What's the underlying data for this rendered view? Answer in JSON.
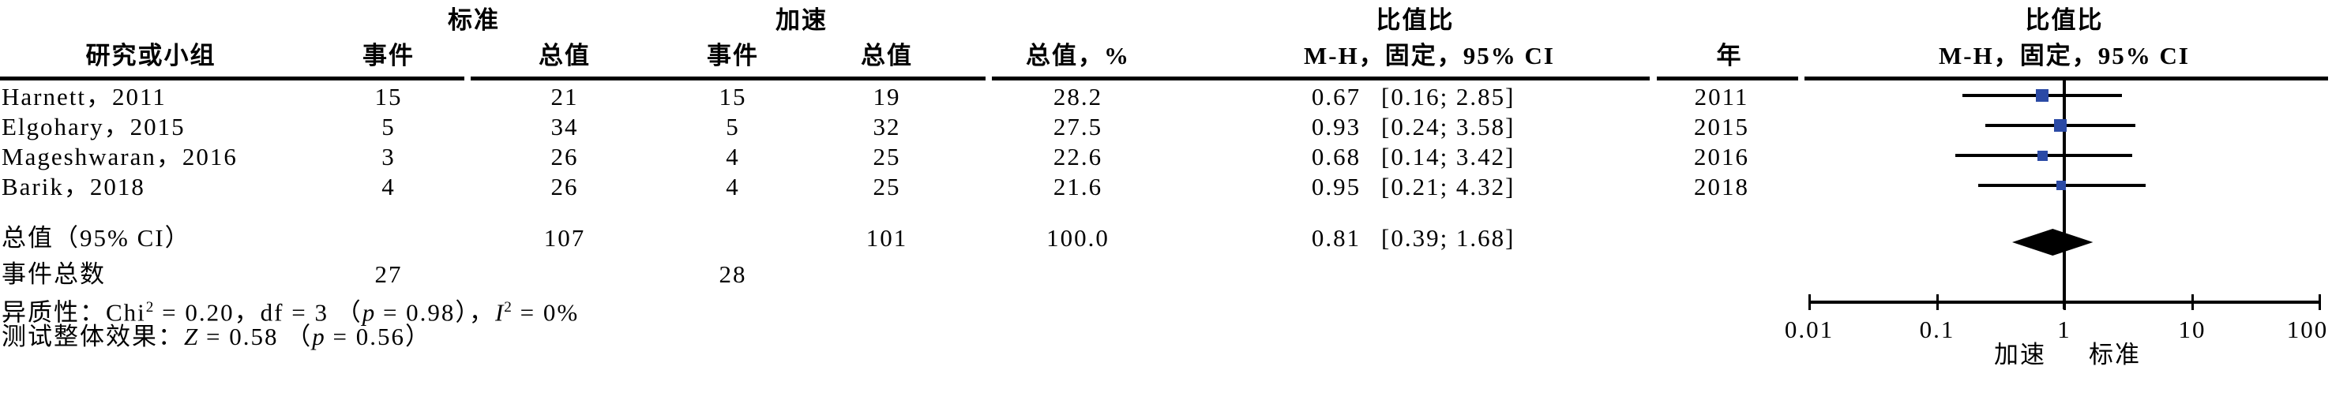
{
  "header": {
    "group_standard": "标准",
    "group_accelerated": "加速",
    "group_or_text": "比值比",
    "group_or_plot": "比值比",
    "col_study": "研究或小组",
    "col_events_std": "事件",
    "col_total_std": "总值",
    "col_events_acc": "事件",
    "col_total_acc": "总值",
    "col_weight": "总值，%",
    "col_mh_text": "M-H，固定，95% CI",
    "col_year": "年",
    "col_mh_plot": "M-H，固定，95% CI"
  },
  "studies": [
    {
      "name": "Harnett，2011",
      "events_std": "15",
      "total_std": "21",
      "events_acc": "15",
      "total_acc": "19",
      "weight_pct": "28.2",
      "or": "0.67",
      "ci": "[0.16; 2.85]",
      "year": "2011"
    },
    {
      "name": "Elgohary，2015",
      "events_std": "5",
      "total_std": "34",
      "events_acc": "5",
      "total_acc": "32",
      "weight_pct": "27.5",
      "or": "0.93",
      "ci": "[0.24; 3.58]",
      "year": "2015"
    },
    {
      "name": "Mageshwaran，2016",
      "events_std": "3",
      "total_std": "26",
      "events_acc": "4",
      "total_acc": "25",
      "weight_pct": "22.6",
      "or": "0.68",
      "ci": "[0.14; 3.42]",
      "year": "2016"
    },
    {
      "name": "Barik，2018",
      "events_std": "4",
      "total_std": "26",
      "events_acc": "4",
      "total_acc": "25",
      "weight_pct": "21.6",
      "or": "0.95",
      "ci": "[0.21; 4.32]",
      "year": "2018"
    }
  ],
  "total_row": {
    "label": "总值（95% CI）",
    "total_std": "107",
    "total_acc": "101",
    "weight_pct": "100.0",
    "or": "0.81",
    "ci": "[0.39; 1.68]"
  },
  "events_row": {
    "label": "事件总数",
    "events_std": "27",
    "events_acc": "28"
  },
  "stats": {
    "het_prefix": "异质性：Chi",
    "het_sup1": "2",
    "het_mid": " = 0.20，df = 3 （",
    "het_p": "p",
    "het_after_p": " = 0.98），",
    "het_i": "I",
    "het_sup2": "2",
    "het_end": " = 0%",
    "eff_prefix": "测试整体效果：",
    "eff_z": "Z",
    "eff_mid": " = 0.58 （",
    "eff_p": "p",
    "eff_end": " = 0.56）"
  },
  "axis": {
    "tick_labels": [
      "0.01",
      "0.1",
      "1",
      "10",
      "100"
    ],
    "tick_values": [
      0.01,
      0.1,
      1,
      10,
      100
    ],
    "label_left": "加速",
    "label_right": "标准"
  },
  "colors": {
    "square_blue": "#2b4aa5",
    "diamond_black": "#000000",
    "line_black": "#000000",
    "background": "#ffffff"
  },
  "chart_data": {
    "type": "forest",
    "effect_measure": "比值比 (Odds Ratio), M-H 固定, 95% CI",
    "x_scale": "log10",
    "xlim": [
      0.01,
      100
    ],
    "reference_line": 1,
    "studies": [
      {
        "name": "Harnett，2011",
        "or": 0.67,
        "ci_low": 0.16,
        "ci_high": 2.85,
        "weight_pct": 28.2,
        "year": 2011
      },
      {
        "name": "Elgohary，2015",
        "or": 0.93,
        "ci_low": 0.24,
        "ci_high": 3.58,
        "weight_pct": 27.5,
        "year": 2015
      },
      {
        "name": "Mageshwaran，2016",
        "or": 0.68,
        "ci_low": 0.14,
        "ci_high": 3.42,
        "weight_pct": 22.6,
        "year": 2016
      },
      {
        "name": "Barik，2018",
        "or": 0.95,
        "ci_low": 0.21,
        "ci_high": 4.32,
        "weight_pct": 21.6,
        "year": 2018
      }
    ],
    "total": {
      "or": 0.81,
      "ci_low": 0.39,
      "ci_high": 1.68,
      "weight_pct": 100.0,
      "total_std": 107,
      "total_acc": 101,
      "events_std": 27,
      "events_acc": 28
    },
    "heterogeneity": {
      "chi2": 0.2,
      "df": 3,
      "p": 0.98,
      "I2_pct": 0
    },
    "overall_effect": {
      "Z": 0.58,
      "p": 0.56
    },
    "axis_ticks": [
      0.01,
      0.1,
      1,
      10,
      100
    ],
    "favors_left": "加速",
    "favors_right": "标准"
  }
}
